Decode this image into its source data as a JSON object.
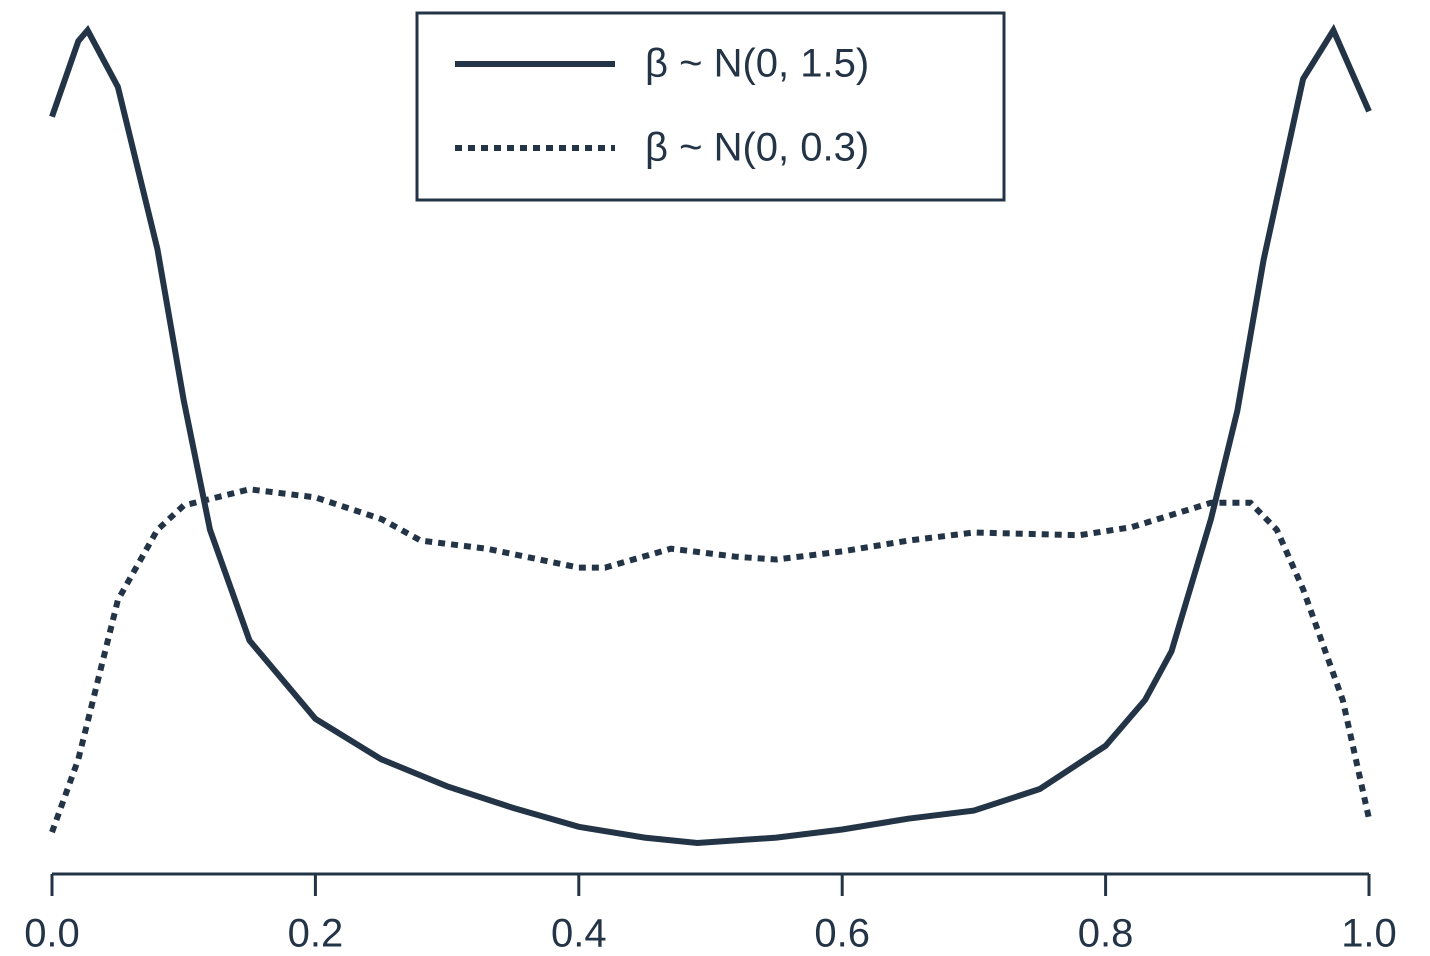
{
  "chart_data": {
    "type": "line",
    "xlim": [
      0,
      1
    ],
    "xticks": [
      {
        "value": 0,
        "label": "0.0"
      },
      0.2,
      0.4,
      0.6,
      0.8,
      {
        "value": 1,
        "label": "1.0"
      }
    ],
    "ylim": [
      0,
      3.2
    ],
    "legend": "upper center",
    "series": [
      {
        "name": "β ~ N(0, 1.5)",
        "color": "#243447",
        "linestyle": "solid",
        "x": [
          0,
          0.02,
          0.027,
          0.05,
          0.08,
          0.1,
          0.12,
          0.15,
          0.2,
          0.25,
          0.3,
          0.35,
          0.4,
          0.45,
          0.49,
          0.55,
          0.6,
          0.65,
          0.7,
          0.75,
          0.8,
          0.83,
          0.85,
          0.88,
          0.9,
          0.92,
          0.95,
          0.973,
          1
        ],
        "values": [
          2.79,
          3.07,
          3.11,
          2.9,
          2.3,
          1.74,
          1.26,
          0.85,
          0.56,
          0.41,
          0.31,
          0.23,
          0.16,
          0.12,
          0.1,
          0.12,
          0.15,
          0.19,
          0.22,
          0.3,
          0.46,
          0.63,
          0.81,
          1.3,
          1.7,
          2.26,
          2.93,
          3.11,
          2.81
        ]
      },
      {
        "name": "β ~ N(0, 0.3)",
        "color": "#243447",
        "linestyle": "dotted",
        "x": [
          0,
          0.02,
          0.05,
          0.08,
          0.1,
          0.15,
          0.2,
          0.25,
          0.28,
          0.33,
          0.4,
          0.42,
          0.47,
          0.52,
          0.55,
          0.6,
          0.65,
          0.7,
          0.78,
          0.82,
          0.88,
          0.91,
          0.93,
          0.95,
          0.98,
          1
        ],
        "values": [
          0.14,
          0.41,
          1.0,
          1.26,
          1.35,
          1.41,
          1.38,
          1.3,
          1.22,
          1.19,
          1.12,
          1.12,
          1.19,
          1.16,
          1.15,
          1.18,
          1.22,
          1.25,
          1.24,
          1.27,
          1.36,
          1.36,
          1.26,
          1.04,
          0.63,
          0.19
        ]
      }
    ]
  }
}
